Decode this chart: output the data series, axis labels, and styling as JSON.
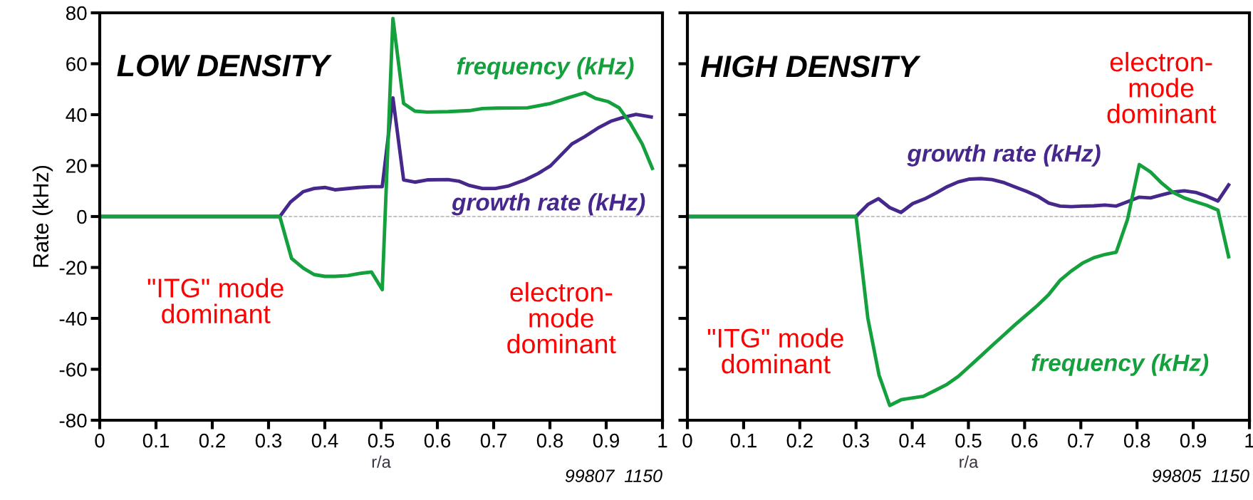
{
  "chart_data": [
    {
      "type": "line",
      "title": "LOW DENSITY",
      "xlabel": "r/a",
      "ylabel": "Rate (kHz)",
      "xlim": [
        0,
        1
      ],
      "xticks": [
        0,
        0.1,
        0.2,
        0.3,
        0.4,
        0.5,
        0.6,
        0.7,
        0.8,
        0.9,
        1
      ],
      "ylim": [
        -80,
        80
      ],
      "yticks": [
        -80,
        -60,
        -40,
        -20,
        0,
        20,
        40,
        60,
        80
      ],
      "grid": false,
      "legend": false,
      "marker": "none",
      "line_style": "solid",
      "ref_lines": [
        {
          "axis": "y",
          "value": 0,
          "color": "#b0b0b0",
          "line_style": "dashed"
        }
      ],
      "annotations": [
        "\"ITG\" mode\ndominant",
        "electron-\nmode\ndominant",
        "99807  1150"
      ],
      "series": [
        {
          "name": "growth rate (kHz)",
          "color": "#46288c",
          "x": [
            0,
            0.32,
            0.339,
            0.362,
            0.381,
            0.4,
            0.418,
            0.437,
            0.46,
            0.483,
            0.502,
            0.521,
            0.54,
            0.56,
            0.582,
            0.619,
            0.638,
            0.657,
            0.68,
            0.703,
            0.725,
            0.756,
            0.779,
            0.801,
            0.839,
            0.862,
            0.885,
            0.908,
            0.93,
            0.953,
            0.98
          ],
          "values": [
            0,
            0,
            5.7,
            9.8,
            11,
            11.4,
            10.5,
            10.9,
            11.4,
            11.7,
            11.7,
            46.6,
            14.4,
            13.5,
            14.4,
            14.5,
            13.9,
            12.2,
            11,
            11,
            11.9,
            14.4,
            16.9,
            19.9,
            28.5,
            31.4,
            34.7,
            37.4,
            38.9,
            40.1,
            39.1
          ]
        },
        {
          "name": "frequency (kHz)",
          "color": "#14a03c",
          "x": [
            0,
            0.32,
            0.341,
            0.362,
            0.381,
            0.4,
            0.418,
            0.441,
            0.464,
            0.483,
            0.502,
            0.521,
            0.54,
            0.56,
            0.582,
            0.619,
            0.657,
            0.68,
            0.707,
            0.76,
            0.801,
            0.832,
            0.862,
            0.881,
            0.904,
            0.923,
            0.942,
            0.964,
            0.982
          ],
          "values": [
            0,
            0,
            -16.5,
            -20.3,
            -22.8,
            -23.5,
            -23.5,
            -23.2,
            -22.3,
            -21.8,
            -28.7,
            77.8,
            44.4,
            41.4,
            41,
            41.2,
            41.6,
            42.4,
            42.6,
            42.7,
            44.4,
            46.6,
            48.6,
            46.4,
            45.1,
            42.7,
            36.9,
            28.5,
            18.9
          ]
        }
      ]
    },
    {
      "type": "line",
      "title": "HIGH DENSITY",
      "xlabel": "r/a",
      "xlim": [
        0,
        1
      ],
      "xticks": [
        0,
        0.1,
        0.2,
        0.3,
        0.4,
        0.5,
        0.6,
        0.7,
        0.8,
        0.9,
        1
      ],
      "ylim": [
        -80,
        80
      ],
      "yticks": [
        {
          "value": -80,
          "label": null
        },
        {
          "value": -60,
          "label": null
        },
        {
          "value": -40,
          "label": null
        },
        {
          "value": -20,
          "label": null
        },
        {
          "value": 0,
          "label": null
        },
        {
          "value": 20,
          "label": null
        },
        {
          "value": 40,
          "label": null
        },
        {
          "value": 60,
          "label": null
        },
        {
          "value": 80,
          "label": null
        }
      ],
      "tick_labels": "x",
      "grid": false,
      "legend": false,
      "marker": "none",
      "line_style": "solid",
      "ref_lines": [
        {
          "axis": "y",
          "value": 0,
          "color": "#b0b0b0",
          "line_style": "dashed"
        }
      ],
      "annotations": [
        "\"ITG\" mode\ndominant",
        "electron-\nmode\ndominant",
        "99805  1150"
      ],
      "series": [
        {
          "name": "growth rate (kHz)",
          "color": "#46288c",
          "x": [
            0,
            0.3,
            0.321,
            0.34,
            0.36,
            0.38,
            0.401,
            0.422,
            0.442,
            0.462,
            0.482,
            0.502,
            0.522,
            0.542,
            0.562,
            0.582,
            0.603,
            0.623,
            0.643,
            0.663,
            0.683,
            0.703,
            0.723,
            0.743,
            0.763,
            0.783,
            0.804,
            0.824,
            0.844,
            0.864,
            0.884,
            0.904,
            0.924,
            0.944,
            0.963
          ],
          "values": [
            0,
            0,
            4.7,
            7,
            3.5,
            1.6,
            5.1,
            6.9,
            9.2,
            11.7,
            13.6,
            14.7,
            14.9,
            14.5,
            13.4,
            11.7,
            9.9,
            8,
            5.3,
            4.1,
            3.9,
            4.1,
            4.2,
            4.5,
            4.1,
            5.8,
            7.6,
            7.3,
            8.5,
            9.6,
            10.1,
            9.5,
            8,
            6.1,
            12.4
          ]
        },
        {
          "name": "frequency (kHz)",
          "color": "#14a03c",
          "x": [
            0,
            0.3,
            0.321,
            0.341,
            0.36,
            0.381,
            0.401,
            0.42,
            0.44,
            0.462,
            0.482,
            0.502,
            0.522,
            0.542,
            0.562,
            0.582,
            0.603,
            0.623,
            0.643,
            0.663,
            0.683,
            0.703,
            0.723,
            0.743,
            0.763,
            0.783,
            0.804,
            0.824,
            0.844,
            0.864,
            0.884,
            0.904,
            0.924,
            0.944,
            0.963
          ],
          "values": [
            0,
            0,
            -39.9,
            -62.3,
            -74.2,
            -71.9,
            -71.2,
            -70.6,
            -68.4,
            -65.9,
            -62.8,
            -58.8,
            -54.8,
            -50.7,
            -46.7,
            -42.7,
            -38.7,
            -34.9,
            -30.6,
            -25.1,
            -21.4,
            -18.3,
            -16.2,
            -14.9,
            -14,
            -1.2,
            20.4,
            17.5,
            13.1,
            9.5,
            7.3,
            5.8,
            4.4,
            2.5,
            -15.8
          ]
        }
      ]
    }
  ]
}
